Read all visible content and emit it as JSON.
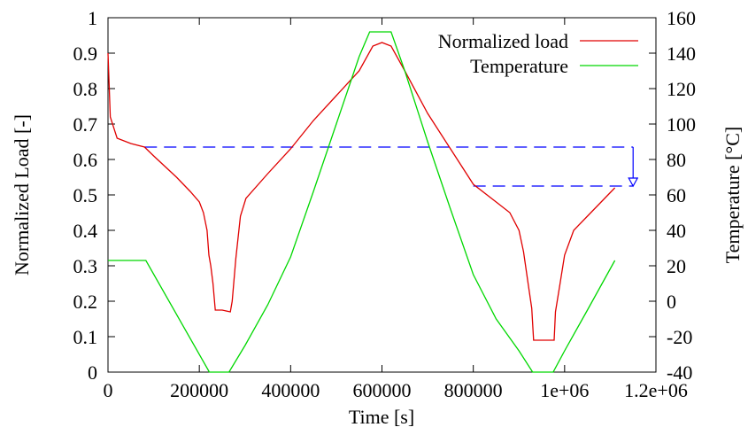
{
  "chart_data": {
    "type": "line",
    "xlabel": "Time [s]",
    "ylabel": "Normalized Load [-]",
    "y2label": "Temperature [°C]",
    "xlim": [
      0,
      1200000
    ],
    "xticks": [
      0,
      200000,
      400000,
      600000,
      800000,
      {
        "value": 1000000,
        "label": "1e+06"
      },
      {
        "value": 1200000,
        "label": "1.2e+06"
      }
    ],
    "ylim": [
      0,
      1
    ],
    "yticks": [
      0,
      0.1,
      0.2,
      0.3,
      0.4,
      0.5,
      0.6,
      0.7,
      0.8,
      0.9,
      1
    ],
    "y2lim": [
      -40,
      160
    ],
    "y2ticks": [
      -40,
      -20,
      0,
      20,
      40,
      60,
      80,
      100,
      120,
      140,
      160
    ],
    "legend": "top-right",
    "series": [
      {
        "name": "Normalized load",
        "color": "#e00000",
        "x": [
          0,
          5000,
          20000,
          50000,
          80000,
          100000,
          150000,
          180000,
          200000,
          209000,
          217000,
          221000,
          225000,
          230000,
          235000,
          250000,
          268000,
          272000,
          280000,
          290000,
          302000,
          350000,
          400000,
          450000,
          500000,
          550000,
          580000,
          600000,
          620000,
          650000,
          700000,
          750000,
          800000,
          850000,
          880000,
          900000,
          910000,
          920000,
          928000,
          932000,
          977000,
          980000,
          990000,
          1000000,
          1020000,
          1050000,
          1080000,
          1110000
        ],
        "values": [
          0.9,
          0.72,
          0.66,
          0.645,
          0.635,
          0.61,
          0.55,
          0.51,
          0.48,
          0.45,
          0.4,
          0.33,
          0.3,
          0.25,
          0.175,
          0.175,
          0.17,
          0.2,
          0.32,
          0.44,
          0.49,
          0.56,
          0.63,
          0.71,
          0.78,
          0.85,
          0.92,
          0.93,
          0.92,
          0.85,
          0.73,
          0.63,
          0.53,
          0.48,
          0.45,
          0.4,
          0.34,
          0.25,
          0.18,
          0.09,
          0.09,
          0.17,
          0.25,
          0.33,
          0.4,
          0.44,
          0.48,
          0.52
        ]
      },
      {
        "name": "Temperature",
        "color": "#00d800",
        "axis": "y2",
        "x": [
          0,
          83000,
          222000,
          265000,
          300000,
          350000,
          400000,
          450000,
          500000,
          550000,
          573000,
          620000,
          650000,
          700000,
          750000,
          800000,
          850000,
          900000,
          930000,
          975000,
          1000000,
          1050000,
          1110000
        ],
        "values": [
          23,
          23,
          -40,
          -40,
          -25,
          -2,
          25,
          62,
          100,
          138,
          152,
          152,
          130,
          90,
          52,
          15,
          -10,
          -28,
          -40,
          -40,
          -28,
          -5,
          23
        ]
      }
    ],
    "reference_lines": [
      {
        "y": 0.635,
        "x": [
          80000,
          1150000
        ]
      },
      {
        "y": 0.525,
        "x": [
          800000,
          1150000
        ]
      }
    ],
    "arrow": {
      "x": 1150000,
      "y": [
        0.635,
        0.525
      ]
    }
  }
}
